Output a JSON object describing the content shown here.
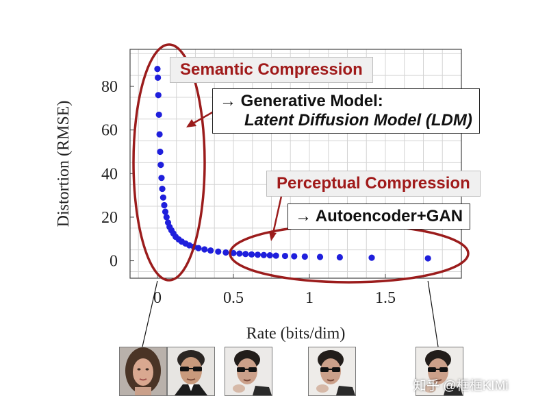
{
  "chart_data": {
    "type": "scatter",
    "xlabel": "Rate (bits/dim)",
    "ylabel": "Distortion (RMSE)",
    "xlim": [
      -0.18,
      2.0
    ],
    "ylim": [
      -8,
      97
    ],
    "xticks": [
      0,
      0.5,
      1,
      1.5
    ],
    "xtick_labels": [
      "0",
      "0.5",
      "1",
      "1.5"
    ],
    "yticks": [
      0,
      20,
      40,
      60,
      80
    ],
    "ytick_labels": [
      "0",
      "20",
      "40",
      "60",
      "80"
    ],
    "grid": true,
    "series": [
      {
        "color": "#1f1fdc",
        "x": [
          0.0,
          0.003,
          0.006,
          0.01,
          0.014,
          0.018,
          0.022,
          0.027,
          0.032,
          0.038,
          0.045,
          0.052,
          0.06,
          0.07,
          0.08,
          0.092,
          0.105,
          0.12,
          0.14,
          0.16,
          0.185,
          0.21,
          0.24,
          0.27,
          0.31,
          0.35,
          0.4,
          0.45,
          0.5,
          0.54,
          0.58,
          0.62,
          0.66,
          0.7,
          0.74,
          0.78,
          0.84,
          0.9,
          0.97,
          1.07,
          1.2,
          1.41,
          1.78
        ],
        "y": [
          88,
          84,
          76,
          67,
          58,
          50,
          44,
          38,
          33,
          29,
          25.5,
          22.5,
          20,
          17.5,
          15.5,
          14,
          12.5,
          11,
          9.8,
          8.8,
          7.9,
          7.1,
          6.4,
          5.8,
          5.2,
          4.7,
          4.2,
          3.8,
          3.5,
          3.3,
          3.1,
          2.9,
          2.75,
          2.6,
          2.5,
          2.35,
          2.2,
          2.05,
          1.9,
          1.75,
          1.6,
          1.4,
          1.1
        ]
      }
    ],
    "annotations": [
      "Semantic Compression",
      "→ Generative Model:",
      "Latent Diffusion Model (LDM)",
      "Perceptual Compression",
      "→ Autoencoder+GAN"
    ],
    "thumbnail_rates": [
      0.0,
      0.3,
      1.0,
      1.78
    ]
  },
  "watermark": "知乎 @框框KIMi",
  "colors": {
    "points": "#1f1fdc",
    "ellipse": "#9b1c1c",
    "arrow": "#9b1c1c",
    "label_text": "#a01a1a"
  }
}
